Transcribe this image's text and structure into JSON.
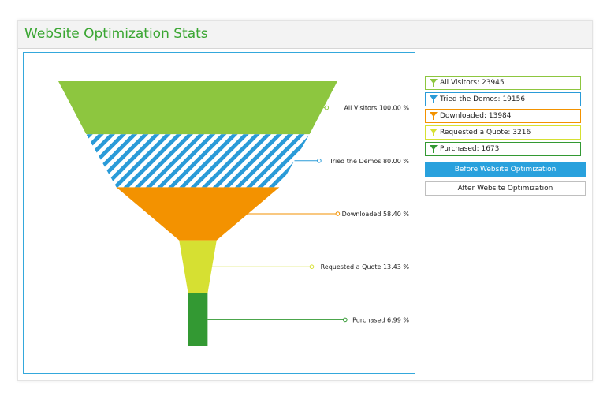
{
  "header": {
    "title": "WebSite Optimization Stats"
  },
  "chart_data": {
    "type": "funnel",
    "stages": [
      {
        "name": "All Visitors",
        "value": 23945,
        "percent": 100.0,
        "percent_label": "100.00 %",
        "color": "#8dc63f",
        "pattern": "solid"
      },
      {
        "name": "Tried the Demos",
        "value": 19156,
        "percent": 80.0,
        "percent_label": "80.00 %",
        "color": "#2a9bd8",
        "pattern": "stripes"
      },
      {
        "name": "Downloaded",
        "value": 13984,
        "percent": 58.4,
        "percent_label": "58.40 %",
        "color": "#f39200",
        "pattern": "solid"
      },
      {
        "name": "Requested a Quote",
        "value": 3216,
        "percent": 13.43,
        "percent_label": "13.43 %",
        "color": "#d6e032",
        "pattern": "solid"
      },
      {
        "name": "Purchased",
        "value": 1673,
        "percent": 6.99,
        "percent_label": "6.99 %",
        "color": "#339933",
        "pattern": "solid"
      }
    ]
  },
  "legend": {
    "items": [
      {
        "text": "All Visitors: 23945",
        "color": "#8dc63f",
        "icon": "funnel-icon"
      },
      {
        "text": "Tried the Demos: 19156",
        "color": "#2a9bd8",
        "icon": "funnel-icon"
      },
      {
        "text": "Downloaded: 13984",
        "color": "#f39200",
        "icon": "funnel-icon"
      },
      {
        "text": "Requested a Quote: 3216",
        "color": "#d6e032",
        "icon": "funnel-icon"
      },
      {
        "text": "Purchased: 1673",
        "color": "#339933",
        "icon": "funnel-icon"
      }
    ]
  },
  "buttons": {
    "before": "Before Website Optimization",
    "after": "After Website Optimization"
  }
}
